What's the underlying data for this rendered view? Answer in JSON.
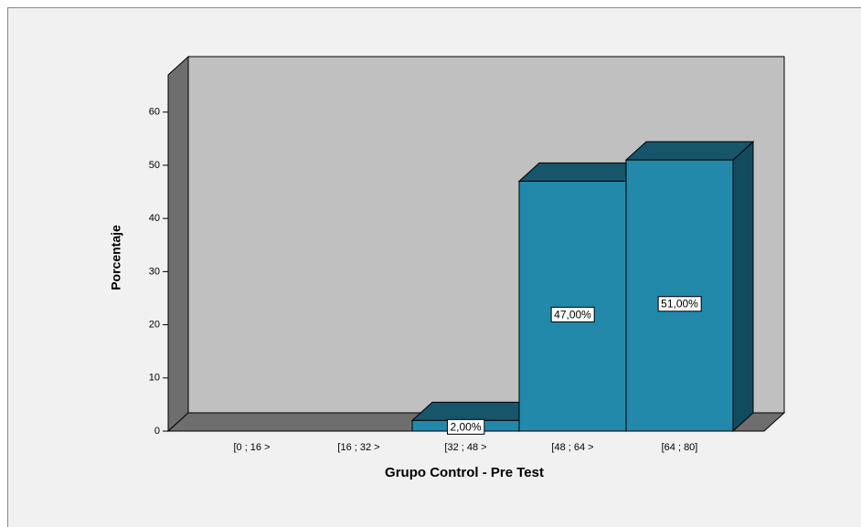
{
  "chart_data": {
    "type": "bar3d",
    "xlabel": "Grupo Control - Pre Test",
    "ylabel": "Porcentaje",
    "categories": [
      "[0 ; 16 >",
      "[16 ; 32 >",
      "[32 ; 48 >",
      "[48 ; 64 >",
      "[64 ; 80]"
    ],
    "values": [
      0,
      0,
      2,
      47,
      51
    ],
    "value_labels": [
      null,
      null,
      "2,00%",
      "47,00%",
      "51,00%"
    ],
    "color": "#2389ab",
    "ylim": [
      0,
      67
    ],
    "yticks": [
      0,
      10,
      20,
      30,
      40,
      50,
      60
    ]
  }
}
